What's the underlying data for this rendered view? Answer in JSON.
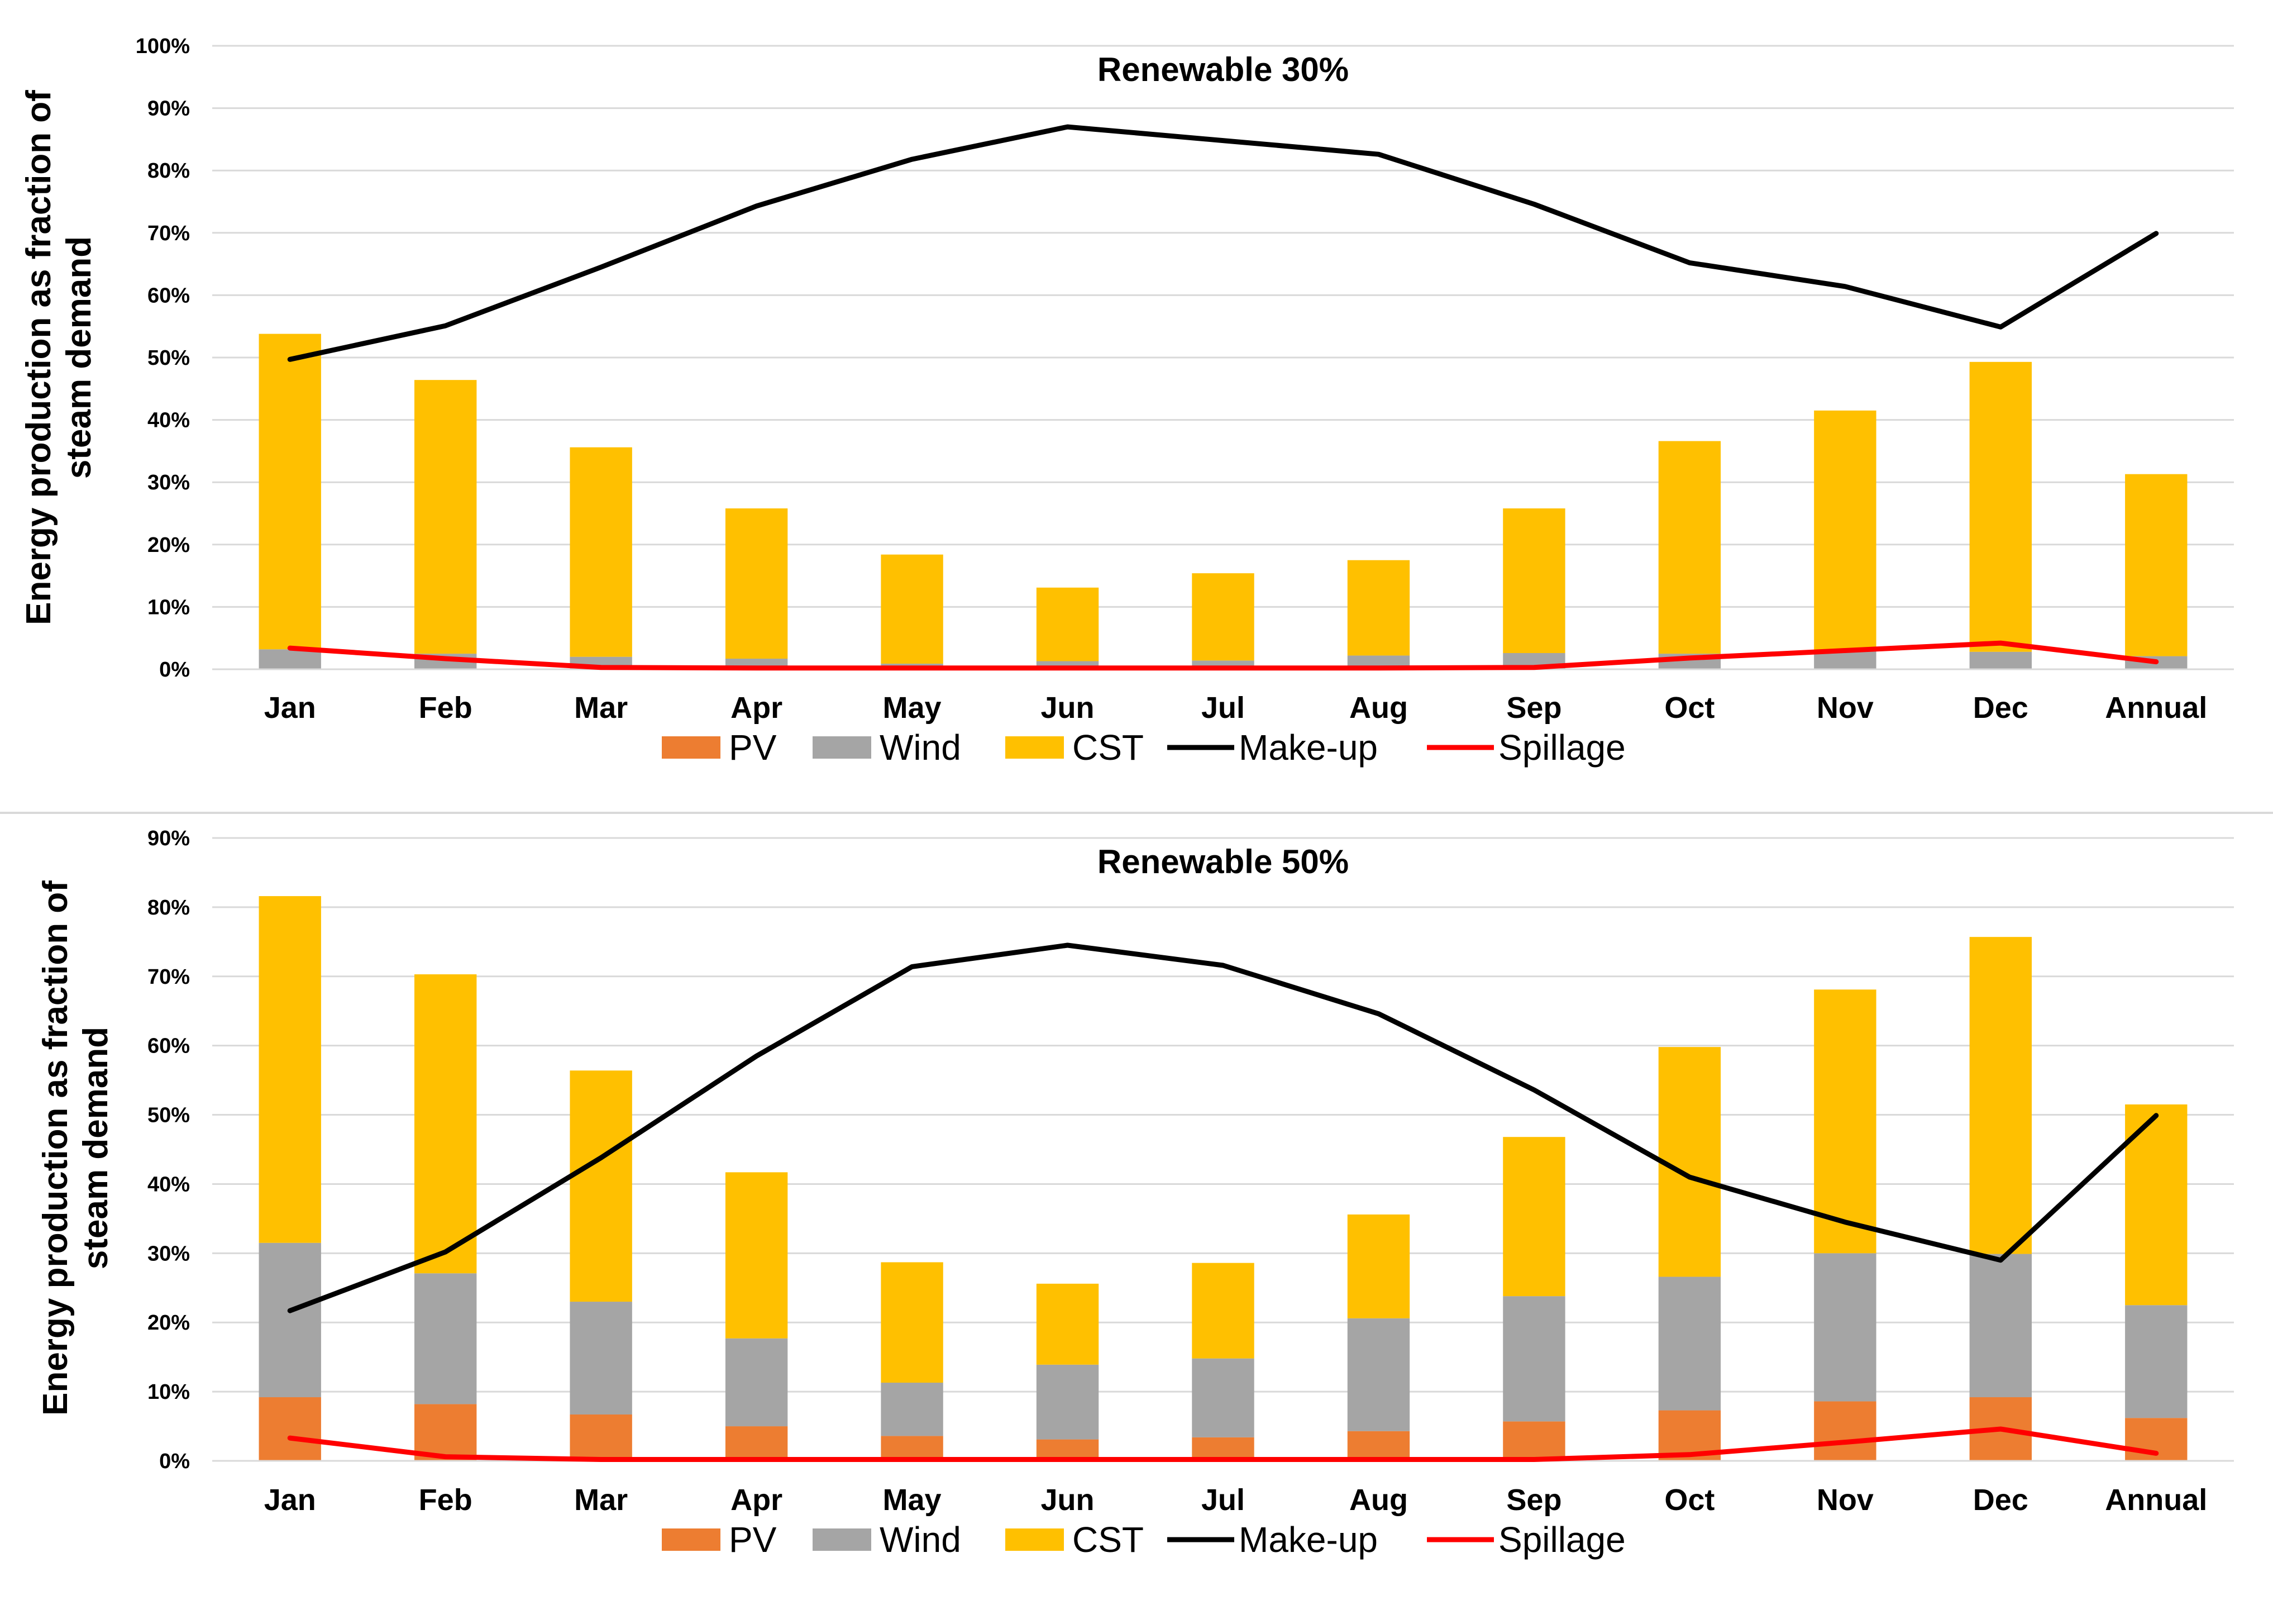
{
  "colors": {
    "PV": "#ED7D31",
    "Wind": "#A5A5A5",
    "CST": "#FFC000",
    "Make-up": "#000000",
    "Spillage": "#FF0000",
    "grid": "#D9D9D9",
    "divider": "#D9D9D9"
  },
  "chart_data": [
    {
      "type": "bar",
      "stacked": true,
      "title": "Renewable 30%",
      "ylabel": [
        "Energy production as fraction of",
        "steam demand"
      ],
      "xlabel": "",
      "ylim": [
        0,
        100
      ],
      "yticks": [
        "0%",
        "10%",
        "20%",
        "30%",
        "40%",
        "50%",
        "60%",
        "70%",
        "80%",
        "90%",
        "100%"
      ],
      "grid": true,
      "legend_position": "bottom",
      "categories": [
        "Jan",
        "Feb",
        "Mar",
        "Apr",
        "May",
        "Jun",
        "Jul",
        "Aug",
        "Sep",
        "Oct",
        "Nov",
        "Dec",
        "Annual"
      ],
      "series": [
        {
          "name": "PV",
          "kind": "bar",
          "values": [
            0,
            0,
            0,
            0,
            0,
            0,
            0,
            0,
            0,
            0,
            0,
            0,
            0
          ]
        },
        {
          "name": "Wind",
          "kind": "bar",
          "values": [
            3.2,
            2.5,
            2.0,
            1.7,
            0.9,
            1.3,
            1.4,
            2.2,
            2.6,
            2.5,
            3.0,
            2.8,
            2.1
          ]
        },
        {
          "name": "CST",
          "kind": "bar",
          "values": [
            50.6,
            43.9,
            33.6,
            24.1,
            17.5,
            11.8,
            14.0,
            15.3,
            23.2,
            34.1,
            38.5,
            46.5,
            29.2
          ]
        },
        {
          "name": "Make-up",
          "kind": "line",
          "values": [
            49.7,
            55.1,
            64.5,
            74.3,
            81.8,
            87.0,
            84.8,
            82.6,
            74.6,
            65.2,
            61.4,
            54.9,
            69.9
          ]
        },
        {
          "name": "Spillage",
          "kind": "line",
          "values": [
            3.4,
            1.7,
            0.3,
            0.2,
            0.2,
            0.2,
            0.2,
            0.2,
            0.3,
            1.8,
            3.0,
            4.2,
            1.2
          ]
        }
      ]
    },
    {
      "type": "bar",
      "stacked": true,
      "title": "Renewable 50%",
      "ylabel": [
        "Energy production as fraction of",
        "steam demand"
      ],
      "xlabel": "",
      "ylim": [
        0,
        90
      ],
      "yticks": [
        "0%",
        "10%",
        "20%",
        "30%",
        "40%",
        "50%",
        "60%",
        "70%",
        "80%",
        "90%"
      ],
      "grid": true,
      "legend_position": "bottom",
      "categories": [
        "Jan",
        "Feb",
        "Mar",
        "Apr",
        "May",
        "Jun",
        "Jul",
        "Aug",
        "Sep",
        "Oct",
        "Nov",
        "Dec",
        "Annual"
      ],
      "series": [
        {
          "name": "PV",
          "kind": "bar",
          "values": [
            9.2,
            8.2,
            6.7,
            5.0,
            3.6,
            3.1,
            3.4,
            4.3,
            5.7,
            7.3,
            8.6,
            9.2,
            6.2
          ]
        },
        {
          "name": "Wind",
          "kind": "bar",
          "values": [
            22.3,
            18.9,
            16.3,
            12.7,
            7.7,
            10.8,
            11.4,
            16.3,
            18.1,
            19.3,
            21.4,
            20.7,
            16.3
          ]
        },
        {
          "name": "CST",
          "kind": "bar",
          "values": [
            50.1,
            43.2,
            33.4,
            24.0,
            17.4,
            11.7,
            13.8,
            15.0,
            23.0,
            33.2,
            38.1,
            45.8,
            29.0
          ]
        },
        {
          "name": "Make-up",
          "kind": "line",
          "values": [
            21.7,
            30.2,
            43.8,
            58.5,
            71.4,
            74.5,
            71.6,
            64.6,
            53.6,
            41.0,
            34.5,
            29.0,
            49.9
          ]
        },
        {
          "name": "Spillage",
          "kind": "line",
          "values": [
            3.3,
            0.6,
            0.2,
            0.2,
            0.2,
            0.2,
            0.2,
            0.2,
            0.2,
            0.9,
            2.7,
            4.6,
            1.1
          ]
        }
      ]
    }
  ]
}
